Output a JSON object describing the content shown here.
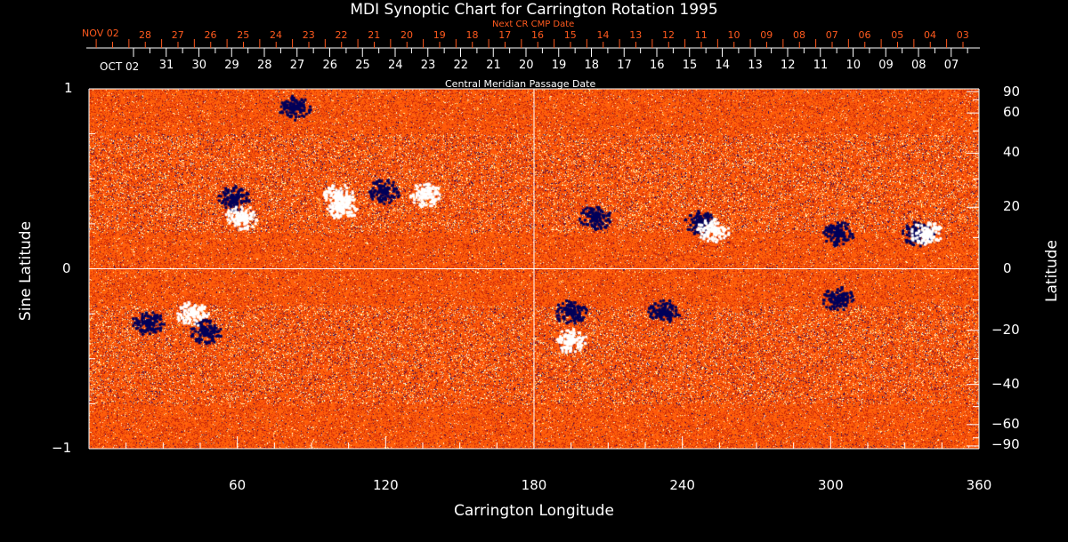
{
  "chart_data": {
    "type": "heatmap",
    "title": "MDI Synoptic Chart for Carrington Rotation 1995",
    "xlabel": "Carrington Longitude",
    "ylabel_left": "Sine Latitude",
    "ylabel_right": "Latitude",
    "xlim": [
      0,
      360
    ],
    "ylim": [
      -1,
      1
    ],
    "x_ticks": [
      "60",
      "120",
      "180",
      "240",
      "300",
      "360"
    ],
    "x_tick_values": [
      60,
      120,
      180,
      240,
      300,
      360
    ],
    "y_left_ticks": [
      "1",
      "0",
      "−1"
    ],
    "y_left_values": [
      1,
      0,
      -1
    ],
    "y_right_ticks": [
      "90",
      "60",
      "40",
      "20",
      "0",
      "−20",
      "−40",
      "−60",
      "−90"
    ],
    "y_right_values": [
      90,
      60,
      40,
      20,
      0,
      -20,
      -40,
      -60,
      -90
    ],
    "top_axis_next": {
      "label": "Next CR CMP Date",
      "month": "NOV 02",
      "days": [
        "28",
        "27",
        "26",
        "25",
        "24",
        "23",
        "22",
        "21",
        "20",
        "19",
        "18",
        "17",
        "16",
        "15",
        "14",
        "13",
        "12",
        "11",
        "10",
        "09",
        "08",
        "07",
        "06",
        "05",
        "04",
        "03"
      ]
    },
    "top_axis_cmp": {
      "label": "Central Meridian Passage Date",
      "month": "OCT 02",
      "days": [
        "31",
        "30",
        "29",
        "28",
        "27",
        "26",
        "25",
        "24",
        "23",
        "22",
        "21",
        "20",
        "19",
        "18",
        "17",
        "16",
        "15",
        "14",
        "13",
        "12",
        "11",
        "10",
        "09",
        "08",
        "07"
      ]
    },
    "colors": {
      "background_field": "#ff4a10",
      "positive": "#ffffff",
      "negative": "#000060",
      "next_axis": "#ff5a1e"
    }
  }
}
